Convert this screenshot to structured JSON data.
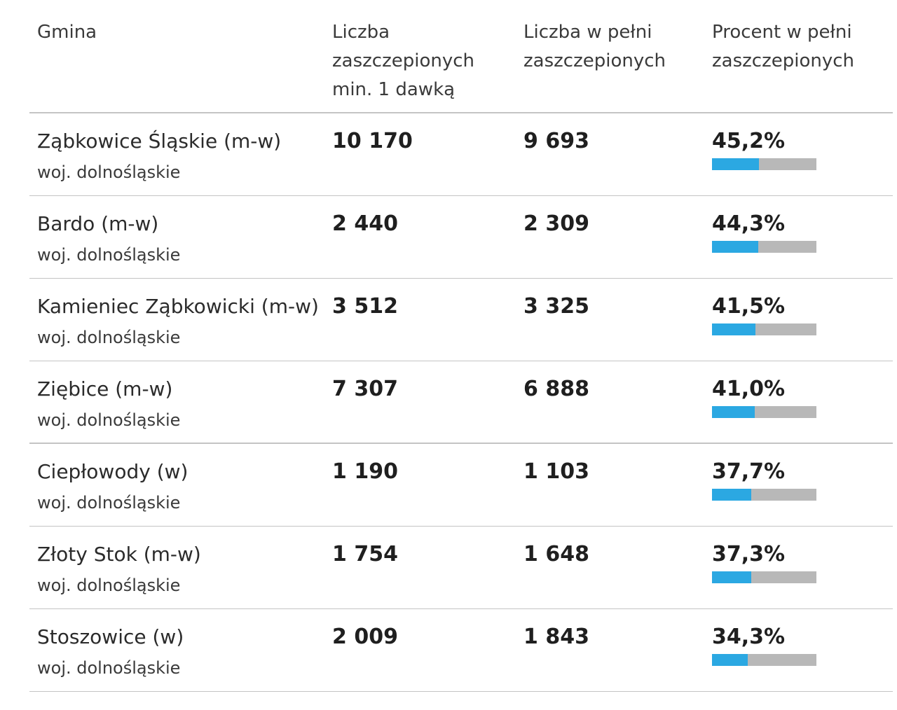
{
  "headers": {
    "col1": "Gmina",
    "col2": "Liczba\nzaszczepionych\nmin. 1 dawką",
    "col3": "Liczba w pełni\nzaszczepionych",
    "col4": "Procent w pełni\nzaszczepionych"
  },
  "colors": {
    "bar_fill": "#2ba8e2",
    "bar_track": "#b8b8b8"
  },
  "rows": [
    {
      "name": "Ząbkowice Śląskie (m-w)",
      "region": "woj. dolnośląskie",
      "at_least_one": "10 170",
      "fully": "9 693",
      "percent": "45,2%",
      "bar_fraction": 0.452
    },
    {
      "name": "Bardo (m-w)",
      "region": "woj. dolnośląskie",
      "at_least_one": "2 440",
      "fully": "2 309",
      "percent": "44,3%",
      "bar_fraction": 0.443
    },
    {
      "name": "Kamieniec Ząbkowicki (m-w)",
      "region": "woj. dolnośląskie",
      "at_least_one": "3 512",
      "fully": "3 325",
      "percent": "41,5%",
      "bar_fraction": 0.415
    },
    {
      "name": "Ziębice (m-w)",
      "region": "woj. dolnośląskie",
      "at_least_one": "7 307",
      "fully": "6 888",
      "percent": "41,0%",
      "bar_fraction": 0.41
    },
    {
      "name": "Ciepłowody (w)",
      "region": "woj. dolnośląskie",
      "at_least_one": "1 190",
      "fully": "1 103",
      "percent": "37,7%",
      "bar_fraction": 0.377
    },
    {
      "name": "Złoty Stok (m-w)",
      "region": "woj. dolnośląskie",
      "at_least_one": "1 754",
      "fully": "1 648",
      "percent": "37,3%",
      "bar_fraction": 0.373
    },
    {
      "name": "Stoszowice (w)",
      "region": "woj. dolnośląskie",
      "at_least_one": "2 009",
      "fully": "1 843",
      "percent": "34,3%",
      "bar_fraction": 0.343
    }
  ]
}
